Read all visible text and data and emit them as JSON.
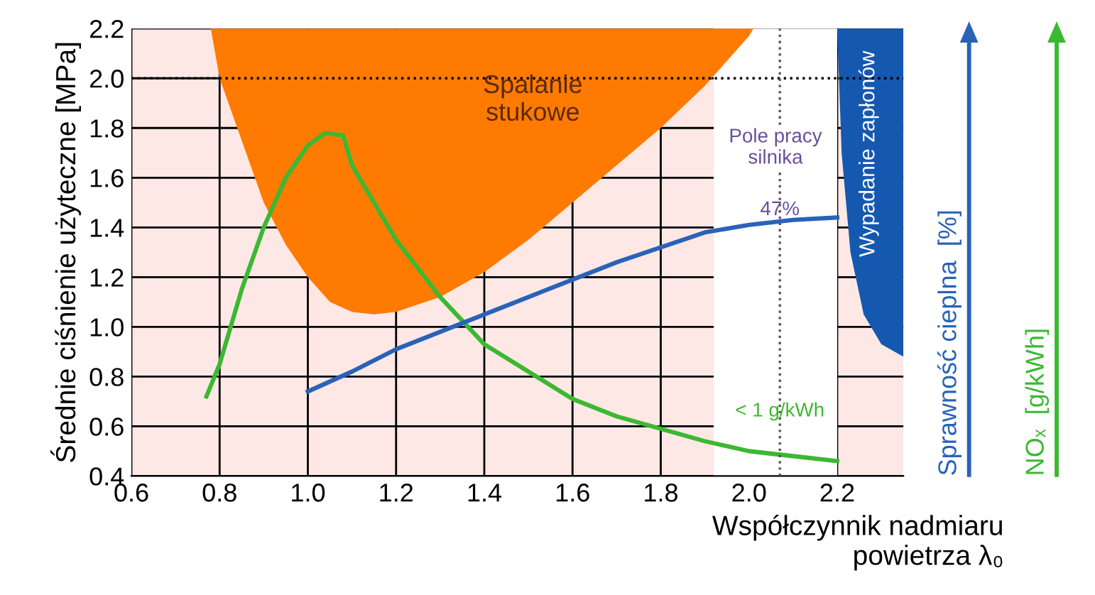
{
  "chart_data": {
    "type": "line",
    "xlabel": "Współczynnik nadmiaru\npowietrza λ₀",
    "ylabel": "Średnie ciśnienie użyteczne [MPa]",
    "xlim": [
      0.6,
      2.35
    ],
    "ylim": [
      0.4,
      2.2
    ],
    "xticks": [
      0.6,
      0.8,
      {
        "value": 1,
        "label": "1.0"
      },
      1.2,
      1.4,
      1.6,
      1.8,
      {
        "value": 2,
        "label": "2.0"
      },
      2.2
    ],
    "yticks": [
      0.4,
      0.6,
      0.8,
      {
        "value": 1,
        "label": "1.0"
      },
      1.2,
      1.4,
      1.6,
      1.8,
      {
        "value": 2,
        "label": "2.0"
      },
      2.2
    ],
    "grid": true,
    "legend": false,
    "series": [
      {
        "type": "area",
        "color": "#ff7a00",
        "x": [
          0.78,
          0.8,
          0.85,
          0.9,
          0.95,
          1.0,
          1.05,
          1.1,
          1.15,
          1.2,
          1.3,
          1.4,
          1.5,
          1.6,
          1.7,
          1.8,
          1.9,
          2.0,
          2.01
        ],
        "values": [
          2.2,
          2.0,
          1.75,
          1.5,
          1.33,
          1.2,
          1.1,
          1.06,
          1.05,
          1.06,
          1.12,
          1.22,
          1.35,
          1.5,
          1.65,
          1.8,
          1.97,
          2.17,
          2.2
        ]
      },
      {
        "type": "area",
        "color": "#1558b0",
        "x": [
          2.2,
          2.21,
          2.23,
          2.26,
          2.3,
          2.35,
          2.35
        ],
        "values": [
          2.2,
          1.7,
          1.3,
          1.05,
          0.93,
          0.88,
          2.2
        ]
      },
      {
        "color": "#3cb832",
        "x": [
          0.77,
          0.8,
          0.85,
          0.9,
          0.95,
          1.0,
          1.04,
          1.08,
          1.1,
          1.15,
          1.2,
          1.3,
          1.4,
          1.5,
          1.6,
          1.7,
          1.8,
          1.9,
          2.0,
          2.1,
          2.2
        ],
        "values": [
          0.72,
          0.85,
          1.15,
          1.4,
          1.6,
          1.73,
          1.78,
          1.77,
          1.65,
          1.5,
          1.35,
          1.12,
          0.93,
          0.82,
          0.71,
          0.64,
          0.59,
          0.54,
          0.5,
          0.48,
          0.46
        ]
      },
      {
        "color": "#2a62b8",
        "x": [
          1.0,
          1.1,
          1.2,
          1.3,
          1.4,
          1.5,
          1.6,
          1.7,
          1.8,
          1.9,
          2.0,
          2.1,
          2.2
        ],
        "values": [
          0.74,
          0.82,
          0.91,
          0.98,
          1.05,
          1.12,
          1.19,
          1.26,
          1.32,
          1.38,
          1.41,
          1.43,
          1.44
        ]
      }
    ],
    "bands": [
      {
        "axis": "x",
        "from": 1.92,
        "to": 2.2,
        "color": "#ffffff",
        "label": "Pole pracy\nsilnika"
      }
    ],
    "ref_lines": [
      {
        "axis": "y",
        "value": 2.0,
        "color": "#000000",
        "line_style": "dotted"
      },
      {
        "axis": "x",
        "value": 2.07,
        "color": "#555555",
        "line_style": "dotted"
      }
    ],
    "annotations": [
      "Spalanie\nstukowe",
      {
        "text": "47%",
        "x": 2.07,
        "y": 1.47
      },
      {
        "text": "< 1 g/kWh",
        "x": 2.07,
        "y": 0.66
      },
      "Wypadanie zapłonów",
      "Sprawność cieplna  [%]",
      "NOₓ  [g/kWh]"
    ]
  }
}
